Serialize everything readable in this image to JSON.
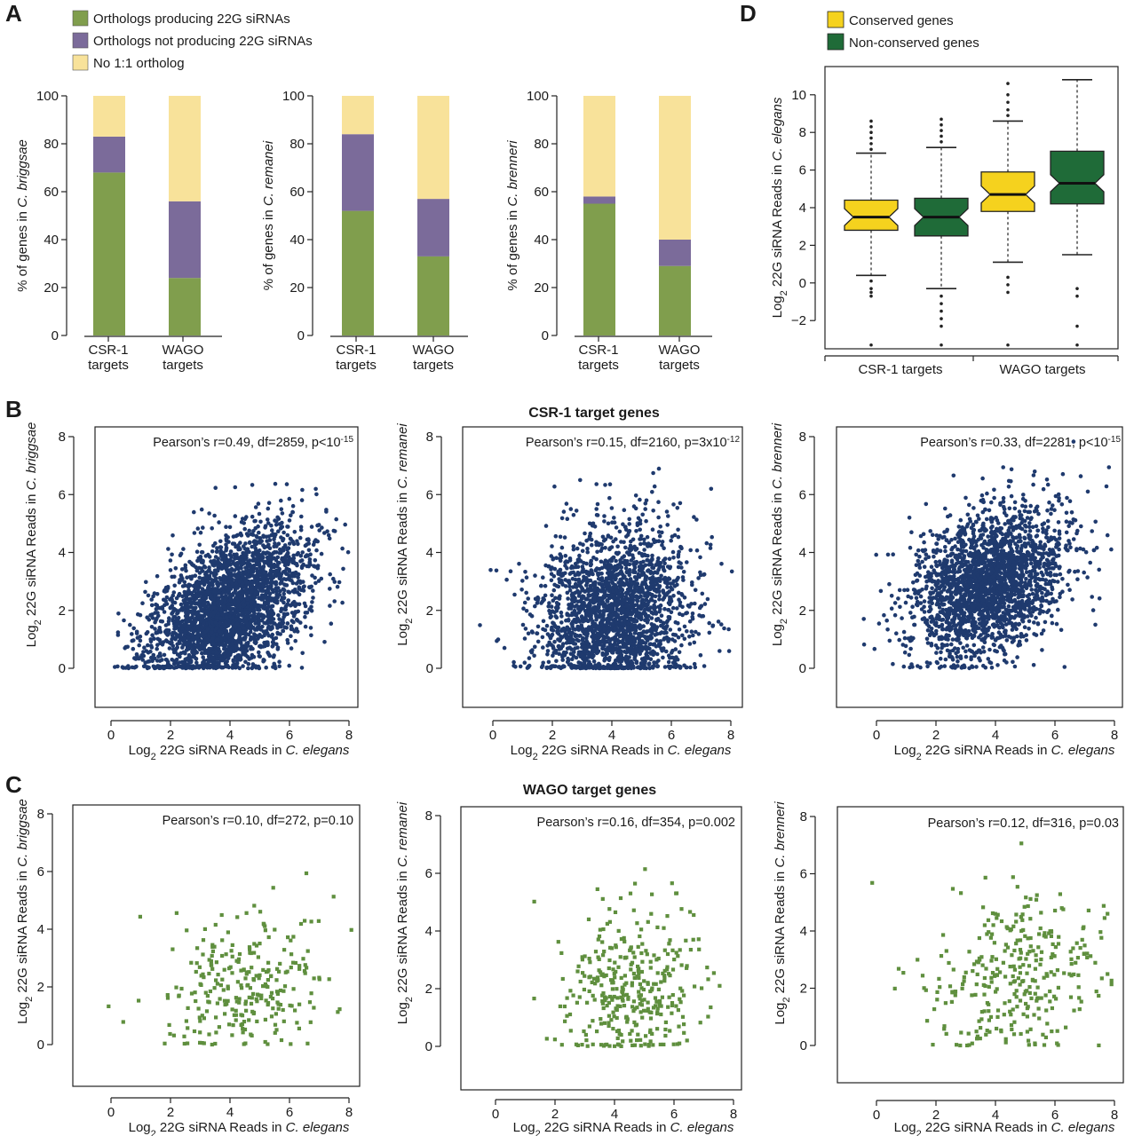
{
  "panels": {
    "A": "A",
    "B": "B",
    "C": "C",
    "D": "D"
  },
  "section_titles": {
    "B": "CSR-1 target genes",
    "C": "WAGO target genes"
  },
  "colors": {
    "green": "#809e4d",
    "purple": "#7b6b9a",
    "yellow": "#f8e29a",
    "navy": "#1f3a6e",
    "scatter_green": "#5f8f3e",
    "conserved": "#f5d21e",
    "nonconserved": "#1f6b38"
  },
  "chart_data": [
    {
      "id": "A-legend",
      "type": "legend",
      "items": [
        {
          "label": "Orthologs producing 22G siRNAs",
          "color": "#809e4d"
        },
        {
          "label": "Orthologs not producing 22G siRNAs",
          "color": "#7b6b9a"
        },
        {
          "label": "No 1:1 ortholog",
          "color": "#f8e29a"
        }
      ]
    },
    {
      "id": "A1",
      "type": "bar",
      "stacked": true,
      "ylabel": {
        "pre": "% of  genes in ",
        "species": "C. briggsae"
      },
      "ylim": [
        0,
        100
      ],
      "yticks": [
        0,
        20,
        40,
        60,
        80,
        100
      ],
      "categories": [
        [
          "CSR-1",
          "targets"
        ],
        [
          "WAGO",
          "targets"
        ]
      ],
      "series": [
        {
          "name": "Orthologs producing 22G siRNAs",
          "values": [
            68,
            24
          ]
        },
        {
          "name": "Orthologs not producing 22G siRNAs",
          "values": [
            15,
            32
          ]
        },
        {
          "name": "No 1:1 ortholog",
          "values": [
            17,
            44
          ]
        }
      ]
    },
    {
      "id": "A2",
      "type": "bar",
      "stacked": true,
      "ylabel": {
        "pre": "% of  genes in ",
        "species": "C. remanei"
      },
      "ylim": [
        0,
        100
      ],
      "yticks": [
        0,
        20,
        40,
        60,
        80,
        100
      ],
      "categories": [
        [
          "CSR-1",
          "targets"
        ],
        [
          "WAGO",
          "targets"
        ]
      ],
      "series": [
        {
          "name": "Orthologs producing 22G siRNAs",
          "values": [
            52,
            33
          ]
        },
        {
          "name": "Orthologs not producing 22G siRNAs",
          "values": [
            32,
            24
          ]
        },
        {
          "name": "No 1:1 ortholog",
          "values": [
            16,
            43
          ]
        }
      ]
    },
    {
      "id": "A3",
      "type": "bar",
      "stacked": true,
      "ylabel": {
        "pre": "% of  genes in ",
        "species": "C. brenneri"
      },
      "ylim": [
        0,
        100
      ],
      "yticks": [
        0,
        20,
        40,
        60,
        80,
        100
      ],
      "categories": [
        [
          "CSR-1",
          "targets"
        ],
        [
          "WAGO",
          "targets"
        ]
      ],
      "series": [
        {
          "name": "Orthologs producing 22G siRNAs",
          "values": [
            55,
            29
          ]
        },
        {
          "name": "Orthologs not producing 22G siRNAs",
          "values": [
            3,
            11
          ]
        },
        {
          "name": "No 1:1 ortholog",
          "values": [
            42,
            60
          ]
        }
      ]
    },
    {
      "id": "D",
      "type": "box",
      "ylabel": {
        "pre": "Log",
        "sub": "2",
        "post": " 22G siRNA Reads in ",
        "species": "C. elegans"
      },
      "ylim": [
        -3.5,
        11.5
      ],
      "yticks": [
        -2,
        0,
        2,
        4,
        6,
        8,
        10
      ],
      "legend": [
        {
          "label": "Conserved genes",
          "color": "#f5d21e"
        },
        {
          "label": "Non-conserved genes",
          "color": "#1f6b38"
        }
      ],
      "groups": [
        "CSR-1 targets",
        "WAGO targets"
      ],
      "boxes": [
        {
          "group": 0,
          "series": "Conserved genes",
          "whisker_low": 0.4,
          "q1": 2.8,
          "median": 3.5,
          "q3": 4.4,
          "whisker_high": 6.9,
          "outliers": [
            -3.3,
            -0.7,
            -0.5,
            -0.3,
            0.1,
            7.1,
            7.4,
            7.7,
            8.0,
            8.3,
            8.6
          ]
        },
        {
          "group": 0,
          "series": "Non-conserved genes",
          "whisker_low": -0.3,
          "q1": 2.5,
          "median": 3.5,
          "q3": 4.5,
          "whisker_high": 7.2,
          "outliers": [
            -3.3,
            -2.3,
            -1.9,
            -1.5,
            -1.1,
            -0.7,
            7.5,
            7.8,
            8.1,
            8.4,
            8.7
          ]
        },
        {
          "group": 1,
          "series": "Conserved genes",
          "whisker_low": 1.1,
          "q1": 3.8,
          "median": 4.7,
          "q3": 5.9,
          "whisker_high": 8.6,
          "outliers": [
            -3.3,
            -0.5,
            -0.1,
            0.3,
            8.9,
            9.2,
            9.6,
            10.0,
            10.6
          ]
        },
        {
          "group": 1,
          "series": "Non-conserved genes",
          "whisker_low": 1.5,
          "q1": 4.2,
          "median": 5.3,
          "q3": 7.0,
          "whisker_high": 10.8,
          "outliers": [
            -3.3,
            -2.3,
            -0.7,
            -0.3
          ]
        }
      ]
    },
    {
      "id": "B1",
      "type": "scatter",
      "group": "B",
      "n": 2861,
      "stat": {
        "text": "Pearson’s r=0.49, df=2859, p<10",
        "sup": "-15"
      },
      "xlabel": {
        "pre": "Log",
        "sub": "2",
        "post": " 22G siRNA Reads in ",
        "species": "C. elegans"
      },
      "ylabel": {
        "pre": "Log",
        "sub": "2",
        "post": " 22G siRNA Reads in ",
        "species": "C. briggsae"
      },
      "xlim": [
        -0.5,
        8.3
      ],
      "ylim": [
        -1.4,
        8.3
      ],
      "xticks": [
        0,
        2,
        4,
        6,
        8
      ],
      "yticks": [
        0,
        2,
        4,
        6,
        8
      ],
      "summary": {
        "x_mean": 3.9,
        "x_sd": 1.3,
        "y_mean": 2.0,
        "y_sd": 1.4,
        "r": 0.49
      }
    },
    {
      "id": "B2",
      "type": "scatter",
      "group": "B",
      "n": 2162,
      "stat": {
        "text": "Pearson’s r=0.15, df=2160, p=3x10",
        "sup": "-12"
      },
      "xlabel": {
        "pre": "Log",
        "sub": "2",
        "post": " 22G siRNA Reads in ",
        "species": "C. elegans"
      },
      "ylabel": {
        "pre": "Log",
        "sub": "2",
        "post": " 22G siRNA Reads in ",
        "species": "C. remanei"
      },
      "xlim": [
        -1.0,
        8.1
      ],
      "ylim": [
        -1.4,
        8.3
      ],
      "xticks": [
        0,
        2,
        4,
        6,
        8
      ],
      "yticks": [
        0,
        2,
        4,
        6,
        8
      ],
      "summary": {
        "x_mean": 4.0,
        "x_sd": 1.3,
        "y_mean": 1.8,
        "y_sd": 1.5,
        "r": 0.15
      }
    },
    {
      "id": "B3",
      "type": "scatter",
      "group": "B",
      "n": 2283,
      "stat": {
        "text": "Pearson’s r=0.33, df=2281, p<10",
        "sup": "-15"
      },
      "xlabel": {
        "pre": "Log",
        "sub": "2",
        "post": " 22G siRNA Reads in ",
        "species": "C. elegans"
      },
      "ylabel": {
        "pre": "Log",
        "sub": "2",
        "post": " 22G siRNA Reads in ",
        "species": "C. brenneri"
      },
      "xlim": [
        -1.0,
        8.2
      ],
      "ylim": [
        -1.4,
        8.3
      ],
      "xticks": [
        0,
        2,
        4,
        6,
        8
      ],
      "yticks": [
        0,
        2,
        4,
        6,
        8
      ],
      "summary": {
        "x_mean": 3.8,
        "x_sd": 1.3,
        "y_mean": 2.9,
        "y_sd": 1.3,
        "r": 0.33
      }
    },
    {
      "id": "C1",
      "type": "scatter",
      "group": "C",
      "n": 274,
      "stat": {
        "text": "Pearson’s r=0.10, df=272, p=0.10",
        "sup": ""
      },
      "xlabel": {
        "pre": "Log",
        "sub": "2",
        "post": " 22G siRNA Reads in ",
        "species": "C. elegans"
      },
      "ylabel": {
        "pre": "Log",
        "sub": "2",
        "post": " 22G siRNA Reads in ",
        "species": "C. briggsae"
      },
      "xlim": [
        -1.1,
        8.2
      ],
      "ylim": [
        -1.3,
        8.3
      ],
      "xticks": [
        0,
        2,
        4,
        6,
        8
      ],
      "yticks": [
        0,
        2,
        4,
        6,
        8
      ],
      "summary": {
        "x_mean": 4.5,
        "x_sd": 1.4,
        "y_mean": 1.8,
        "y_sd": 1.4,
        "r": 0.1
      }
    },
    {
      "id": "C2",
      "type": "scatter",
      "group": "C",
      "n": 356,
      "stat": {
        "text": "Pearson’s r=0.16, df=354, p=0.002",
        "sup": ""
      },
      "xlabel": {
        "pre": "Log",
        "sub": "2",
        "post": " 22G siRNA Reads in ",
        "species": "C. elegans"
      },
      "ylabel": {
        "pre": "Log",
        "sub": "2",
        "post": " 22G siRNA Reads in ",
        "species": "C. remanei"
      },
      "xlim": [
        -1.0,
        8.2
      ],
      "ylim": [
        -1.3,
        8.3
      ],
      "xticks": [
        0,
        2,
        4,
        6,
        8
      ],
      "yticks": [
        0,
        2,
        4,
        6,
        8
      ],
      "summary": {
        "x_mean": 4.6,
        "x_sd": 1.3,
        "y_mean": 2.0,
        "y_sd": 1.5,
        "r": 0.16
      }
    },
    {
      "id": "C3",
      "type": "scatter",
      "group": "C",
      "n": 318,
      "stat": {
        "text": "Pearson’s r=0.12, df=316, p=0.03",
        "sup": ""
      },
      "xlabel": {
        "pre": "Log",
        "sub": "2",
        "post": " 22G siRNA Reads in ",
        "species": "C. elegans"
      },
      "ylabel": {
        "pre": "Log",
        "sub": "2",
        "post": " 22G siRNA Reads in ",
        "species": "C. brenneri"
      },
      "xlim": [
        -1.0,
        8.2
      ],
      "ylim": [
        -1.3,
        8.3
      ],
      "xticks": [
        0,
        2,
        4,
        6,
        8
      ],
      "yticks": [
        0,
        2,
        4,
        6,
        8
      ],
      "summary": {
        "x_mean": 4.7,
        "x_sd": 1.4,
        "y_mean": 2.3,
        "y_sd": 1.4,
        "r": 0.12
      }
    }
  ]
}
